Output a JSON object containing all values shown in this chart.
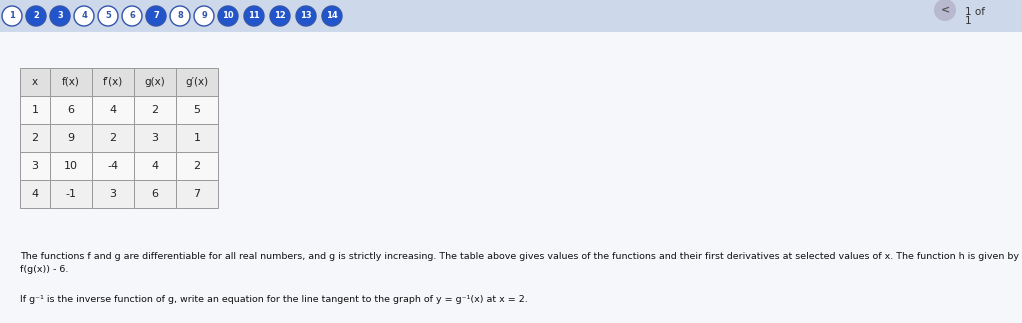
{
  "background_color": "#f0f0f0",
  "page_bg": "#ffffff",
  "nav_bar_bg": "#dde8f5",
  "nav_circles": [
    {
      "num": "1",
      "color": "#ffffff",
      "text_color": "#3355aa",
      "filled": false
    },
    {
      "num": "2",
      "color": "#2255cc",
      "text_color": "#ffffff",
      "filled": true
    },
    {
      "num": "3",
      "color": "#2255cc",
      "text_color": "#ffffff",
      "filled": true
    },
    {
      "num": "4",
      "color": "#ffffff",
      "text_color": "#3355aa",
      "filled": false
    },
    {
      "num": "5",
      "color": "#ffffff",
      "text_color": "#3355aa",
      "filled": false
    },
    {
      "num": "6",
      "color": "#ffffff",
      "text_color": "#3355aa",
      "filled": false
    },
    {
      "num": "7",
      "color": "#2255cc",
      "text_color": "#ffffff",
      "filled": true
    },
    {
      "num": "8",
      "color": "#ffffff",
      "text_color": "#3355aa",
      "filled": false
    },
    {
      "num": "9",
      "color": "#ffffff",
      "text_color": "#3355aa",
      "filled": false
    },
    {
      "num": "10",
      "color": "#2255cc",
      "text_color": "#ffffff",
      "filled": true
    },
    {
      "num": "11",
      "color": "#2255cc",
      "text_color": "#ffffff",
      "filled": true
    },
    {
      "num": "12",
      "color": "#2255cc",
      "text_color": "#ffffff",
      "filled": true
    },
    {
      "num": "13",
      "color": "#2255cc",
      "text_color": "#ffffff",
      "filled": true
    },
    {
      "num": "14",
      "color": "#2255cc",
      "text_color": "#ffffff",
      "filled": true
    }
  ],
  "table_headers": [
    "x",
    "f(x)",
    "f′(x)",
    "g(x)",
    "g′(x)"
  ],
  "table_data": [
    [
      "1",
      "6",
      "4",
      "2",
      "5"
    ],
    [
      "2",
      "9",
      "2",
      "3",
      "1"
    ],
    [
      "3",
      "10",
      "-4",
      "4",
      "2"
    ],
    [
      "4",
      "-1",
      "3",
      "6",
      "7"
    ]
  ],
  "paragraph_line1": "The functions f and g are differentiable for all real numbers, and g is strictly increasing. The table above gives values of the functions and their first derivatives at selected values of x. The function h is given by h(x) =",
  "paragraph_line2": "f(g(x)) - 6.",
  "question_text": "If g⁻¹ is the inverse function of g, write an equation for the line tangent to the graph of y = g⁻¹(x) at x = 2.",
  "top_right_arrow": "<",
  "top_right_label": "1 of",
  "top_right_num": "1"
}
